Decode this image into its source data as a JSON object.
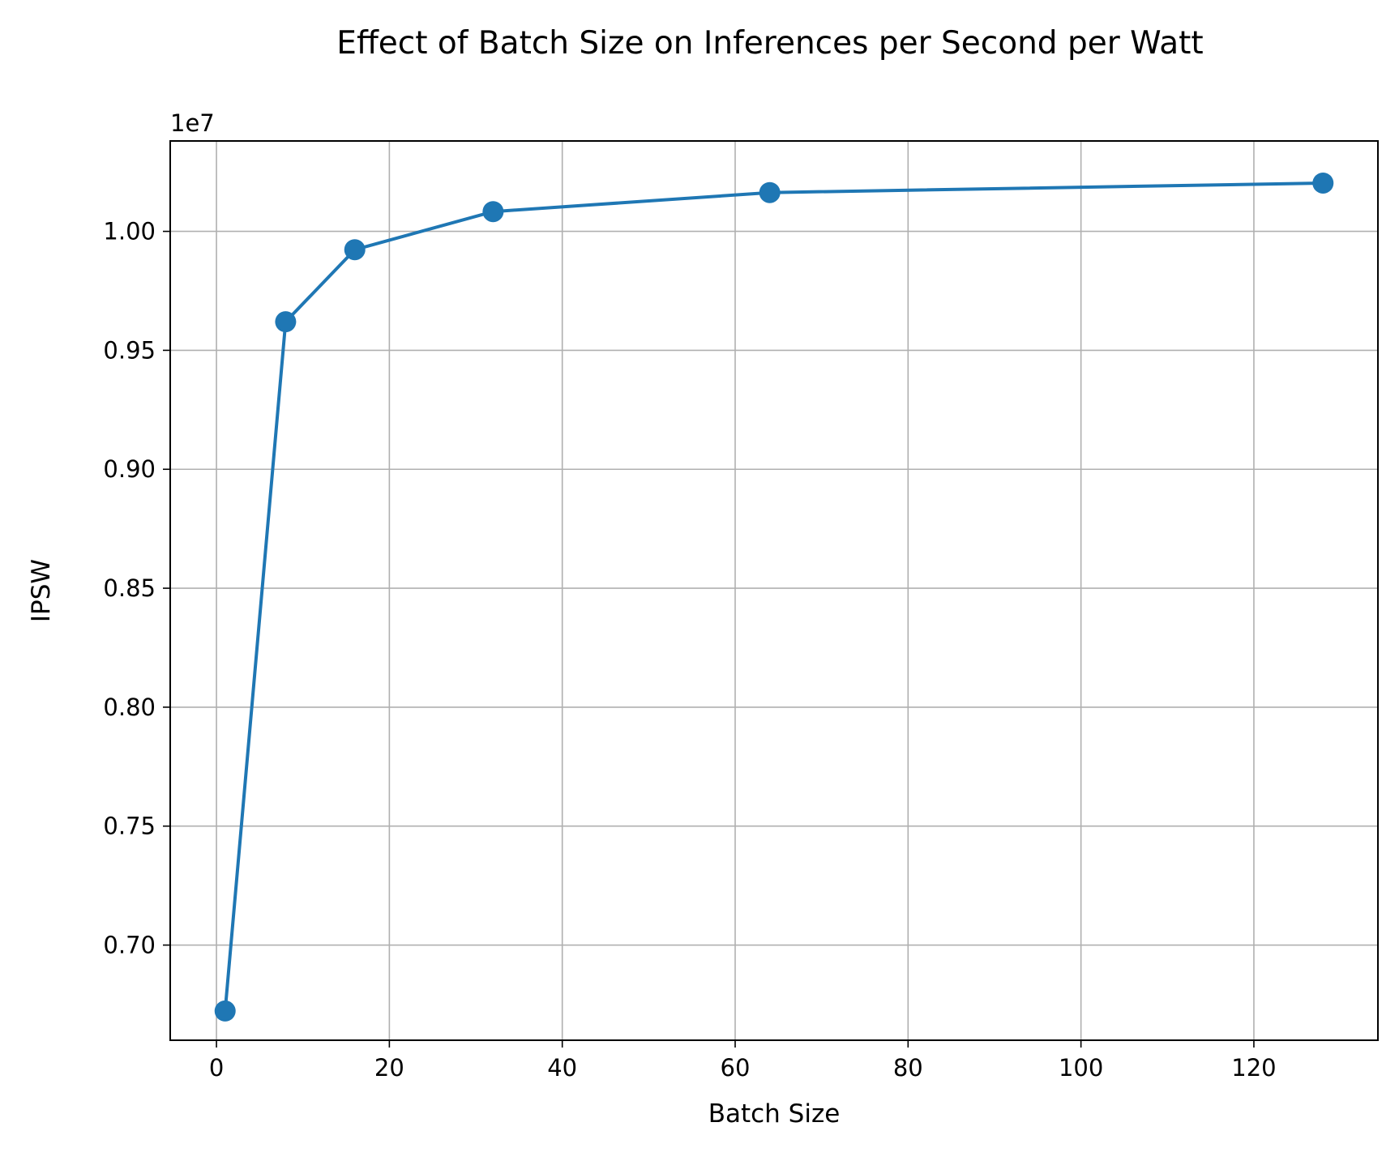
{
  "chart_data": {
    "type": "line",
    "title": "Effect of Batch Size on Inferences per Second per Watt",
    "xlabel": "Batch Size",
    "ylabel": "IPSW",
    "y_offset_label": "1e7",
    "x": [
      1,
      8,
      16,
      32,
      64,
      128
    ],
    "series": [
      {
        "values": [
          6723000,
          9620000,
          9923000,
          10083000,
          10163000,
          10203000
        ],
        "color": "#1f77b4",
        "marker": "circle"
      }
    ],
    "xlim": [
      -5.35,
      134.35
    ],
    "ylim": [
      6600000,
      10380000
    ],
    "x_ticks": [
      0,
      20,
      40,
      60,
      80,
      100,
      120
    ],
    "x_tick_labels": [
      "0",
      "20",
      "40",
      "60",
      "80",
      "100",
      "120"
    ],
    "y_ticks": [
      7000000,
      7500000,
      8000000,
      8500000,
      9000000,
      9500000,
      10000000
    ],
    "y_tick_labels": [
      "0.70",
      "0.75",
      "0.80",
      "0.85",
      "0.90",
      "0.95",
      "1.00"
    ],
    "grid": true,
    "legend": "none"
  }
}
